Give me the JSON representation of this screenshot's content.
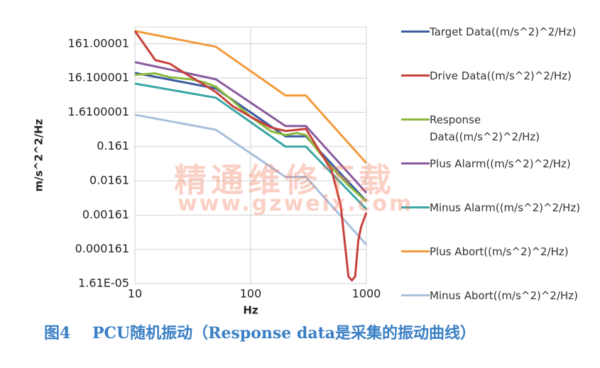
{
  "chart_data": {
    "type": "line",
    "xlabel": "Hz",
    "ylabel": "m/s^2^2/Hz",
    "log_x": true,
    "log_y": true,
    "grid": true,
    "xlim": [
      10,
      1000
    ],
    "xticks": [
      10,
      100,
      1000
    ],
    "ylim": [
      1.61e-05,
      500
    ],
    "yticks": [
      {
        "value": 1.61e-05,
        "label": "1.61E-05"
      },
      0.000161,
      0.00161,
      0.0161,
      0.161,
      1.6100001,
      16.100001,
      161.00001
    ],
    "series": [
      {
        "name": "Target Data((m/s^2)^2/Hz)",
        "color": "#3a5ba0",
        "x": [
          10,
          50,
          200,
          300,
          1000
        ],
        "values": [
          22.8,
          8,
          0.32,
          0.32,
          0.0041
        ]
      },
      {
        "name": "Drive Data((m/s^2)^2/Hz)",
        "color": "#c8403a",
        "x": [
          10,
          15,
          20,
          25,
          30,
          40,
          50,
          70,
          100,
          150,
          200,
          300,
          400,
          500,
          600,
          700,
          750,
          800,
          850,
          900,
          1000
        ],
        "values": [
          380,
          53.8,
          42.4,
          26.3,
          18,
          10.1,
          6.3,
          2.43,
          1.19,
          0.58,
          0.46,
          0.53,
          0.11,
          0.033,
          0.0031,
          2.6e-05,
          2e-05,
          2.6e-05,
          0.00028,
          0.00073,
          0.0019
        ]
      },
      {
        "name": "Response Data((m/s^2)^2/Hz)",
        "color": "#8ab83a",
        "x": [
          10,
          15,
          20,
          30,
          40,
          50,
          70,
          100,
          150,
          200,
          250,
          300,
          400,
          500,
          700,
          1000
        ],
        "values": [
          20,
          22,
          17,
          15,
          12,
          9,
          3.5,
          1.2,
          0.45,
          0.35,
          0.4,
          0.35,
          0.1,
          0.04,
          0.012,
          0.004
        ]
      },
      {
        "name": "Plus Alarm((m/s^2)^2/Hz)",
        "color": "#8a5a9e",
        "x": [
          10,
          50,
          200,
          300,
          1000
        ],
        "values": [
          47,
          14.9,
          0.64,
          0.64,
          0.0072
        ]
      },
      {
        "name": "Minus Alarm((m/s^2)^2/Hz)",
        "color": "#3aa6a6",
        "x": [
          10,
          50,
          200,
          300,
          1000
        ],
        "values": [
          11.1,
          4.3,
          0.161,
          0.161,
          0.0024
        ]
      },
      {
        "name": "Plus Abort((m/s^2)^2/Hz)",
        "color": "#f39a3c",
        "x": [
          10,
          50,
          200,
          300,
          1000
        ],
        "values": [
          380,
          132,
          5,
          5,
          0.053
        ]
      },
      {
        "name": "Minus Abort((m/s^2)^2/Hz)",
        "color": "#a9bfdc",
        "x": [
          10,
          50,
          200,
          300,
          1000
        ],
        "values": [
          1.37,
          0.5,
          0.021,
          0.021,
          0.00022
        ]
      }
    ],
    "caption": "图4    PCU随机振动（Response data是采集的振动曲线）",
    "watermark": [
      "精通维修下载",
      "www.gzweix.com"
    ]
  }
}
